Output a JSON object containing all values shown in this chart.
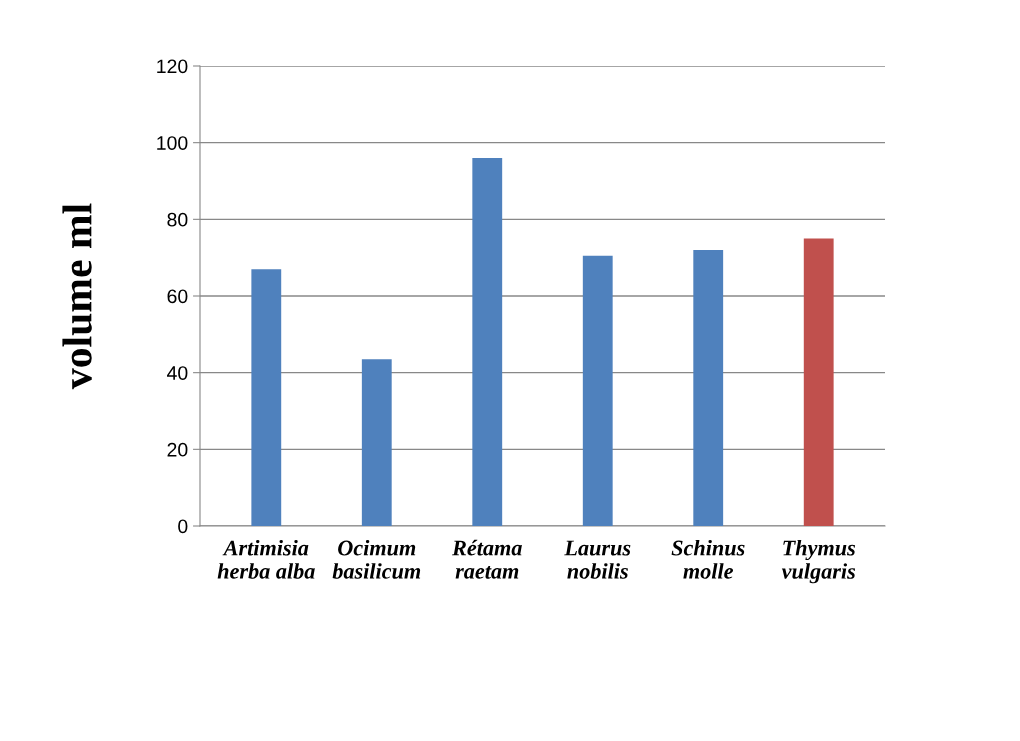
{
  "chart_data": {
    "type": "bar",
    "ylabel": "volume ml",
    "categories": [
      "Artimisia\nherba alba",
      "Ocimum\nbasilicum",
      "Rétama\nraetam",
      "Laurus\nnobilis",
      "Schinus\nmolle",
      "Thymus\nvulgaris"
    ],
    "values": [
      67,
      43.5,
      96,
      70.5,
      72,
      75
    ],
    "colors": [
      "#4f81bd",
      "#4f81bd",
      "#4f81bd",
      "#4f81bd",
      "#4f81bd",
      "#c0504d"
    ],
    "ylim": [
      0,
      120
    ],
    "yticks": [
      0,
      20,
      40,
      60,
      80,
      100,
      120
    ],
    "grid": "y",
    "legend": false
  }
}
